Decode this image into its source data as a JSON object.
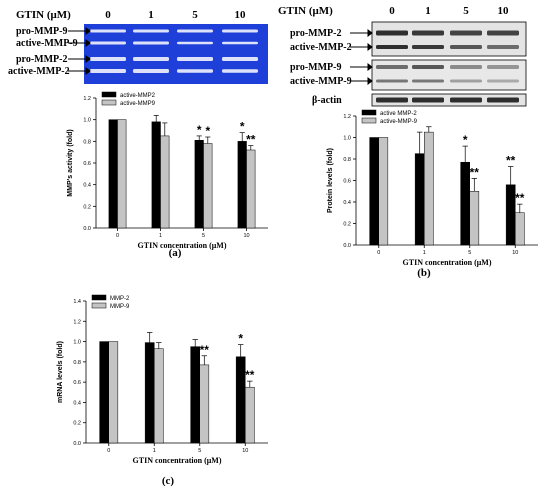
{
  "colors": {
    "black_bar": "#000000",
    "gray_bar": "#c4c4c4",
    "zymogram_bg": "#1f3fd9",
    "zymogram_band": "#ffffff",
    "western_bg": "#e4e4e4",
    "western_band": "#1a1a1a"
  },
  "zymogram": {
    "header_label": "GTIN (μM)",
    "lanes": [
      "0",
      "1",
      "5",
      "10"
    ],
    "band_labels": [
      "pro-MMP-9",
      "active-MMP-9",
      "pro-MMP-2",
      "active-MMP-2"
    ]
  },
  "western": {
    "header_label": "GTIN (μM)",
    "lanes": [
      "0",
      "1",
      "5",
      "10"
    ],
    "band_labels": [
      "pro-MMP-2",
      "active-MMP-2",
      "pro-MMP-9",
      "active-MMP-9",
      "β-actin"
    ]
  },
  "panel_labels": {
    "a": "(a)",
    "b": "(b)",
    "c": "(c)"
  },
  "chart_data": [
    {
      "id": "a",
      "type": "bar",
      "categories": [
        "0",
        "1",
        "5",
        "10"
      ],
      "xlabel": "GTIN concentration (μM)",
      "ylabel": "MMP's activity (fold)",
      "ylim": [
        0,
        1.2
      ],
      "yticks": [
        "0.0",
        "0.2",
        "0.4",
        "0.6",
        "0.8",
        "1.0",
        "1.2"
      ],
      "legend_position": "top-left",
      "series": [
        {
          "name": "active-MMP2",
          "color": "#000000",
          "values": [
            1.0,
            0.98,
            0.81,
            0.8
          ],
          "errors": [
            0.0,
            0.06,
            0.04,
            0.08
          ],
          "marks": [
            "",
            "",
            "*",
            "*"
          ]
        },
        {
          "name": "active-MMP9",
          "color": "#c4c4c4",
          "values": [
            1.0,
            0.85,
            0.78,
            0.72
          ],
          "errors": [
            0.0,
            0.12,
            0.06,
            0.04
          ],
          "marks": [
            "",
            "",
            "*",
            "**"
          ]
        }
      ]
    },
    {
      "id": "b",
      "type": "bar",
      "categories": [
        "0",
        "1",
        "5",
        "10"
      ],
      "xlabel": "GTIN concentration (μM)",
      "ylabel": "Protein levels (fold)",
      "ylim": [
        0,
        1.2
      ],
      "yticks": [
        "0.0",
        "0.2",
        "0.4",
        "0.6",
        "0.8",
        "1.0",
        "1.2"
      ],
      "legend_position": "top-left",
      "series": [
        {
          "name": "active MMP-2",
          "color": "#000000",
          "values": [
            1.0,
            0.85,
            0.77,
            0.56
          ],
          "errors": [
            0.0,
            0.2,
            0.15,
            0.17
          ],
          "marks": [
            "",
            "",
            "*",
            "**"
          ]
        },
        {
          "name": "active-MMP-9",
          "color": "#c4c4c4",
          "values": [
            1.0,
            1.05,
            0.5,
            0.3
          ],
          "errors": [
            0.0,
            0.05,
            0.12,
            0.08
          ],
          "marks": [
            "",
            "",
            "**",
            "**"
          ]
        }
      ]
    },
    {
      "id": "c",
      "type": "bar",
      "categories": [
        "0",
        "1",
        "5",
        "10"
      ],
      "xlabel": "GTIN concentration (μM)",
      "ylabel": "mRNA levels (fold)",
      "ylim": [
        0,
        1.4
      ],
      "yticks": [
        "0.0",
        "0.2",
        "0.4",
        "0.6",
        "0.8",
        "1.0",
        "1.2",
        "1.4"
      ],
      "legend_position": "top-left",
      "series": [
        {
          "name": "MMP-2",
          "color": "#000000",
          "values": [
            1.0,
            0.99,
            0.95,
            0.85
          ],
          "errors": [
            0.0,
            0.1,
            0.07,
            0.12
          ],
          "marks": [
            "",
            "",
            "",
            "*"
          ]
        },
        {
          "name": "MMP-9",
          "color": "#c4c4c4",
          "values": [
            1.0,
            0.93,
            0.77,
            0.55
          ],
          "errors": [
            0.0,
            0.06,
            0.09,
            0.06
          ],
          "marks": [
            "",
            "",
            "**",
            "**"
          ]
        }
      ]
    }
  ]
}
